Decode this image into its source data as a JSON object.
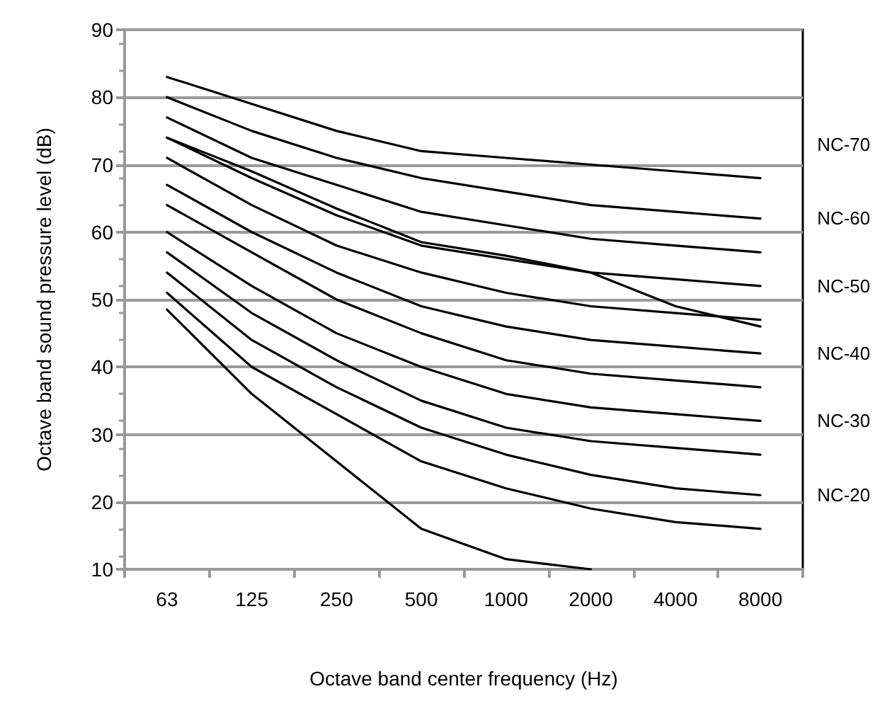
{
  "chart_data": {
    "type": "line",
    "xlabel": "Octave band center frequency (Hz)",
    "ylabel": "Octave band sound pressure level (dB)",
    "categories": [
      "63",
      "125",
      "250",
      "500",
      "1000",
      "2000",
      "4000",
      "8000"
    ],
    "ylim": [
      10,
      90
    ],
    "yticks": [
      10,
      20,
      30,
      40,
      50,
      60,
      70,
      80,
      90
    ],
    "grid": "y",
    "legend": false,
    "marker": "none",
    "line_style": "solid",
    "series": [
      {
        "name": "NC-70",
        "color": "#000000",
        "values": [
          83,
          79,
          75,
          72,
          71,
          70,
          69,
          68
        ]
      },
      {
        "color": "#000000",
        "values": [
          80,
          75,
          71,
          68,
          66,
          64,
          63,
          62
        ]
      },
      {
        "name": "NC-60",
        "color": "#000000",
        "values": [
          77,
          71,
          67,
          63,
          61,
          59,
          58,
          57
        ]
      },
      {
        "color": "#000000",
        "values": [
          74,
          69,
          63.5,
          58.5,
          56.5,
          54,
          49,
          46
        ]
      },
      {
        "color": "#000000",
        "values": [
          74,
          68,
          62.5,
          58,
          56,
          54,
          53,
          52
        ]
      },
      {
        "name": "NC-50",
        "color": "#000000",
        "values": [
          71,
          64,
          58,
          54,
          51,
          49,
          48,
          47
        ]
      },
      {
        "color": "#000000",
        "values": [
          67,
          60,
          54,
          49,
          46,
          44,
          43,
          42
        ]
      },
      {
        "name": "NC-40",
        "color": "#000000",
        "values": [
          64,
          57,
          50,
          45,
          41,
          39,
          38,
          37
        ]
      },
      {
        "color": "#000000",
        "values": [
          60,
          52,
          45,
          40,
          36,
          34,
          33,
          32
        ]
      },
      {
        "name": "NC-30",
        "color": "#000000",
        "values": [
          57,
          48,
          41,
          35,
          31,
          29,
          28,
          27
        ]
      },
      {
        "color": "#000000",
        "values": [
          54,
          44,
          37,
          31,
          27,
          24,
          22,
          21
        ]
      },
      {
        "name": "NC-20",
        "color": "#000000",
        "values": [
          51,
          40,
          33,
          26,
          22,
          19,
          17,
          16
        ]
      },
      {
        "color": "#000000",
        "values": [
          48.5,
          36,
          26,
          16,
          11.5,
          10,
          null,
          null
        ]
      }
    ]
  }
}
